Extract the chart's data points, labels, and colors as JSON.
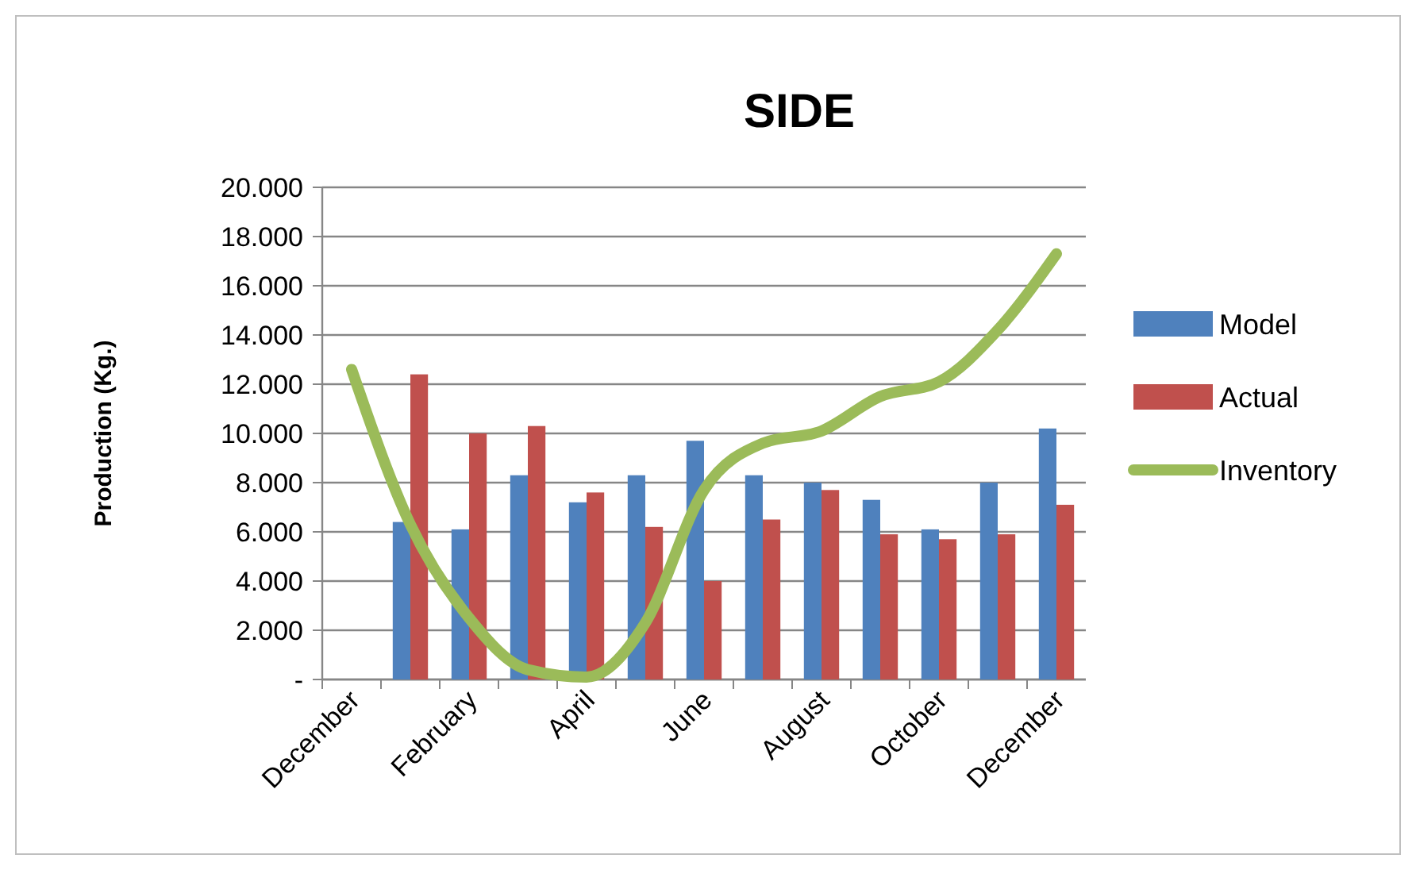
{
  "chart_data": {
    "type": "bar",
    "title": "SIDE",
    "ylabel": "Production (Kg.)",
    "categories": [
      "December",
      null,
      "February",
      null,
      "April",
      null,
      "June",
      null,
      "August",
      null,
      "October",
      null,
      "December"
    ],
    "series": [
      {
        "name": "Model",
        "color": "#4f81bd",
        "values": [
          null,
          6400,
          6100,
          8300,
          7200,
          8300,
          9700,
          8300,
          8000,
          7300,
          6100,
          8000,
          10200
        ]
      },
      {
        "name": "Actual",
        "color": "#c0504d",
        "values": [
          null,
          12400,
          10000,
          10300,
          7600,
          6200,
          4000,
          6500,
          7700,
          5900,
          5700,
          5900,
          7100
        ]
      },
      {
        "name": "Inventory",
        "type": "line",
        "color": "#9bbb59",
        "values": [
          12600,
          6300,
          2500,
          400,
          100,
          2300,
          7700,
          9600,
          10100,
          11500,
          12100,
          14200,
          17300
        ]
      }
    ],
    "ylim": [
      0,
      20000
    ],
    "yticks": [
      {
        "value": 0,
        "label": "-"
      },
      {
        "value": 2000,
        "label": "2.000"
      },
      {
        "value": 4000,
        "label": "4.000"
      },
      {
        "value": 6000,
        "label": "6.000"
      },
      {
        "value": 8000,
        "label": "8.000"
      },
      {
        "value": 10000,
        "label": "10.000"
      },
      {
        "value": 12000,
        "label": "12.000"
      },
      {
        "value": 14000,
        "label": "14.000"
      },
      {
        "value": 16000,
        "label": "16.000"
      },
      {
        "value": 18000,
        "label": "18.000"
      },
      {
        "value": 20000,
        "label": "20.000"
      }
    ],
    "grid": "y",
    "legend": "right",
    "marker": "none",
    "line_style": "solid"
  }
}
